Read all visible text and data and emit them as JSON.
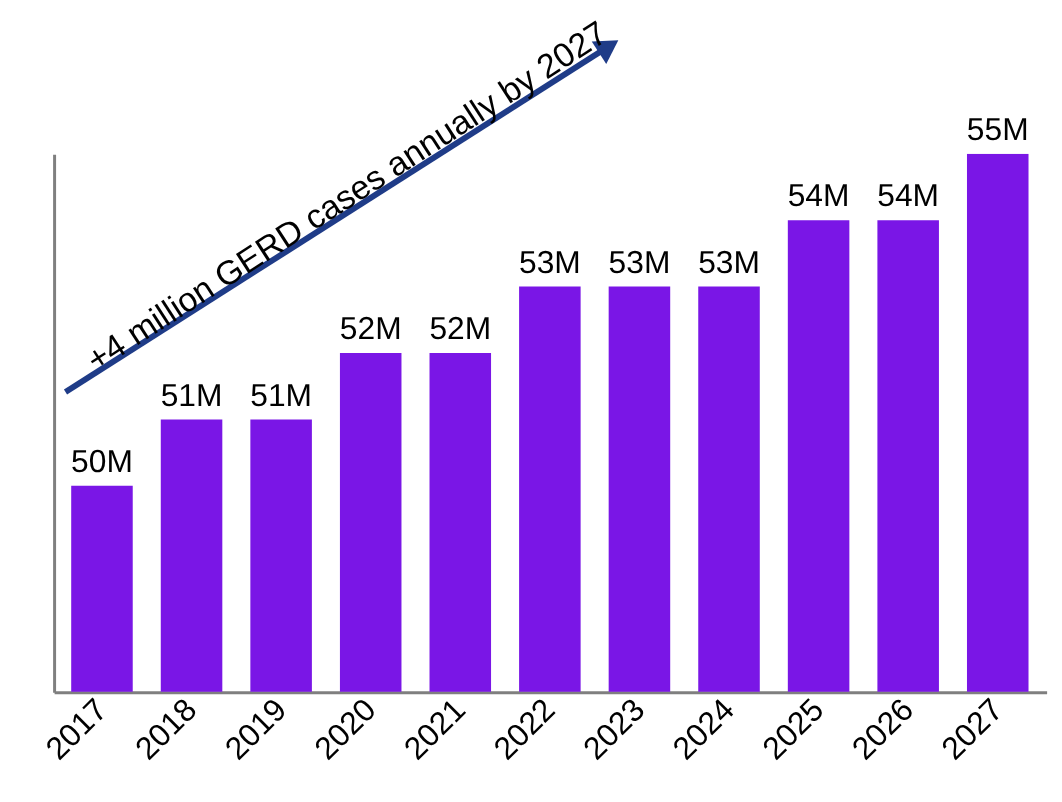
{
  "chart_data": {
    "type": "bar",
    "ylim": [
      46.9,
      55
    ],
    "tick_labels": "x",
    "categories": [
      "2017",
      "2018",
      "2019",
      "2020",
      "2021",
      "2022",
      "2023",
      "2024",
      "2025",
      "2026",
      "2027"
    ],
    "values": [
      50,
      51,
      51,
      52,
      52,
      53,
      53,
      53,
      54,
      54,
      55
    ],
    "value_labels": [
      "50M",
      "51M",
      "51M",
      "52M",
      "52M",
      "53M",
      "53M",
      "53M",
      "54M",
      "54M",
      "55M"
    ],
    "color": "#7a16e6",
    "annotations": [
      "+4 million GERD cases annually by 2027"
    ],
    "grid": false
  }
}
